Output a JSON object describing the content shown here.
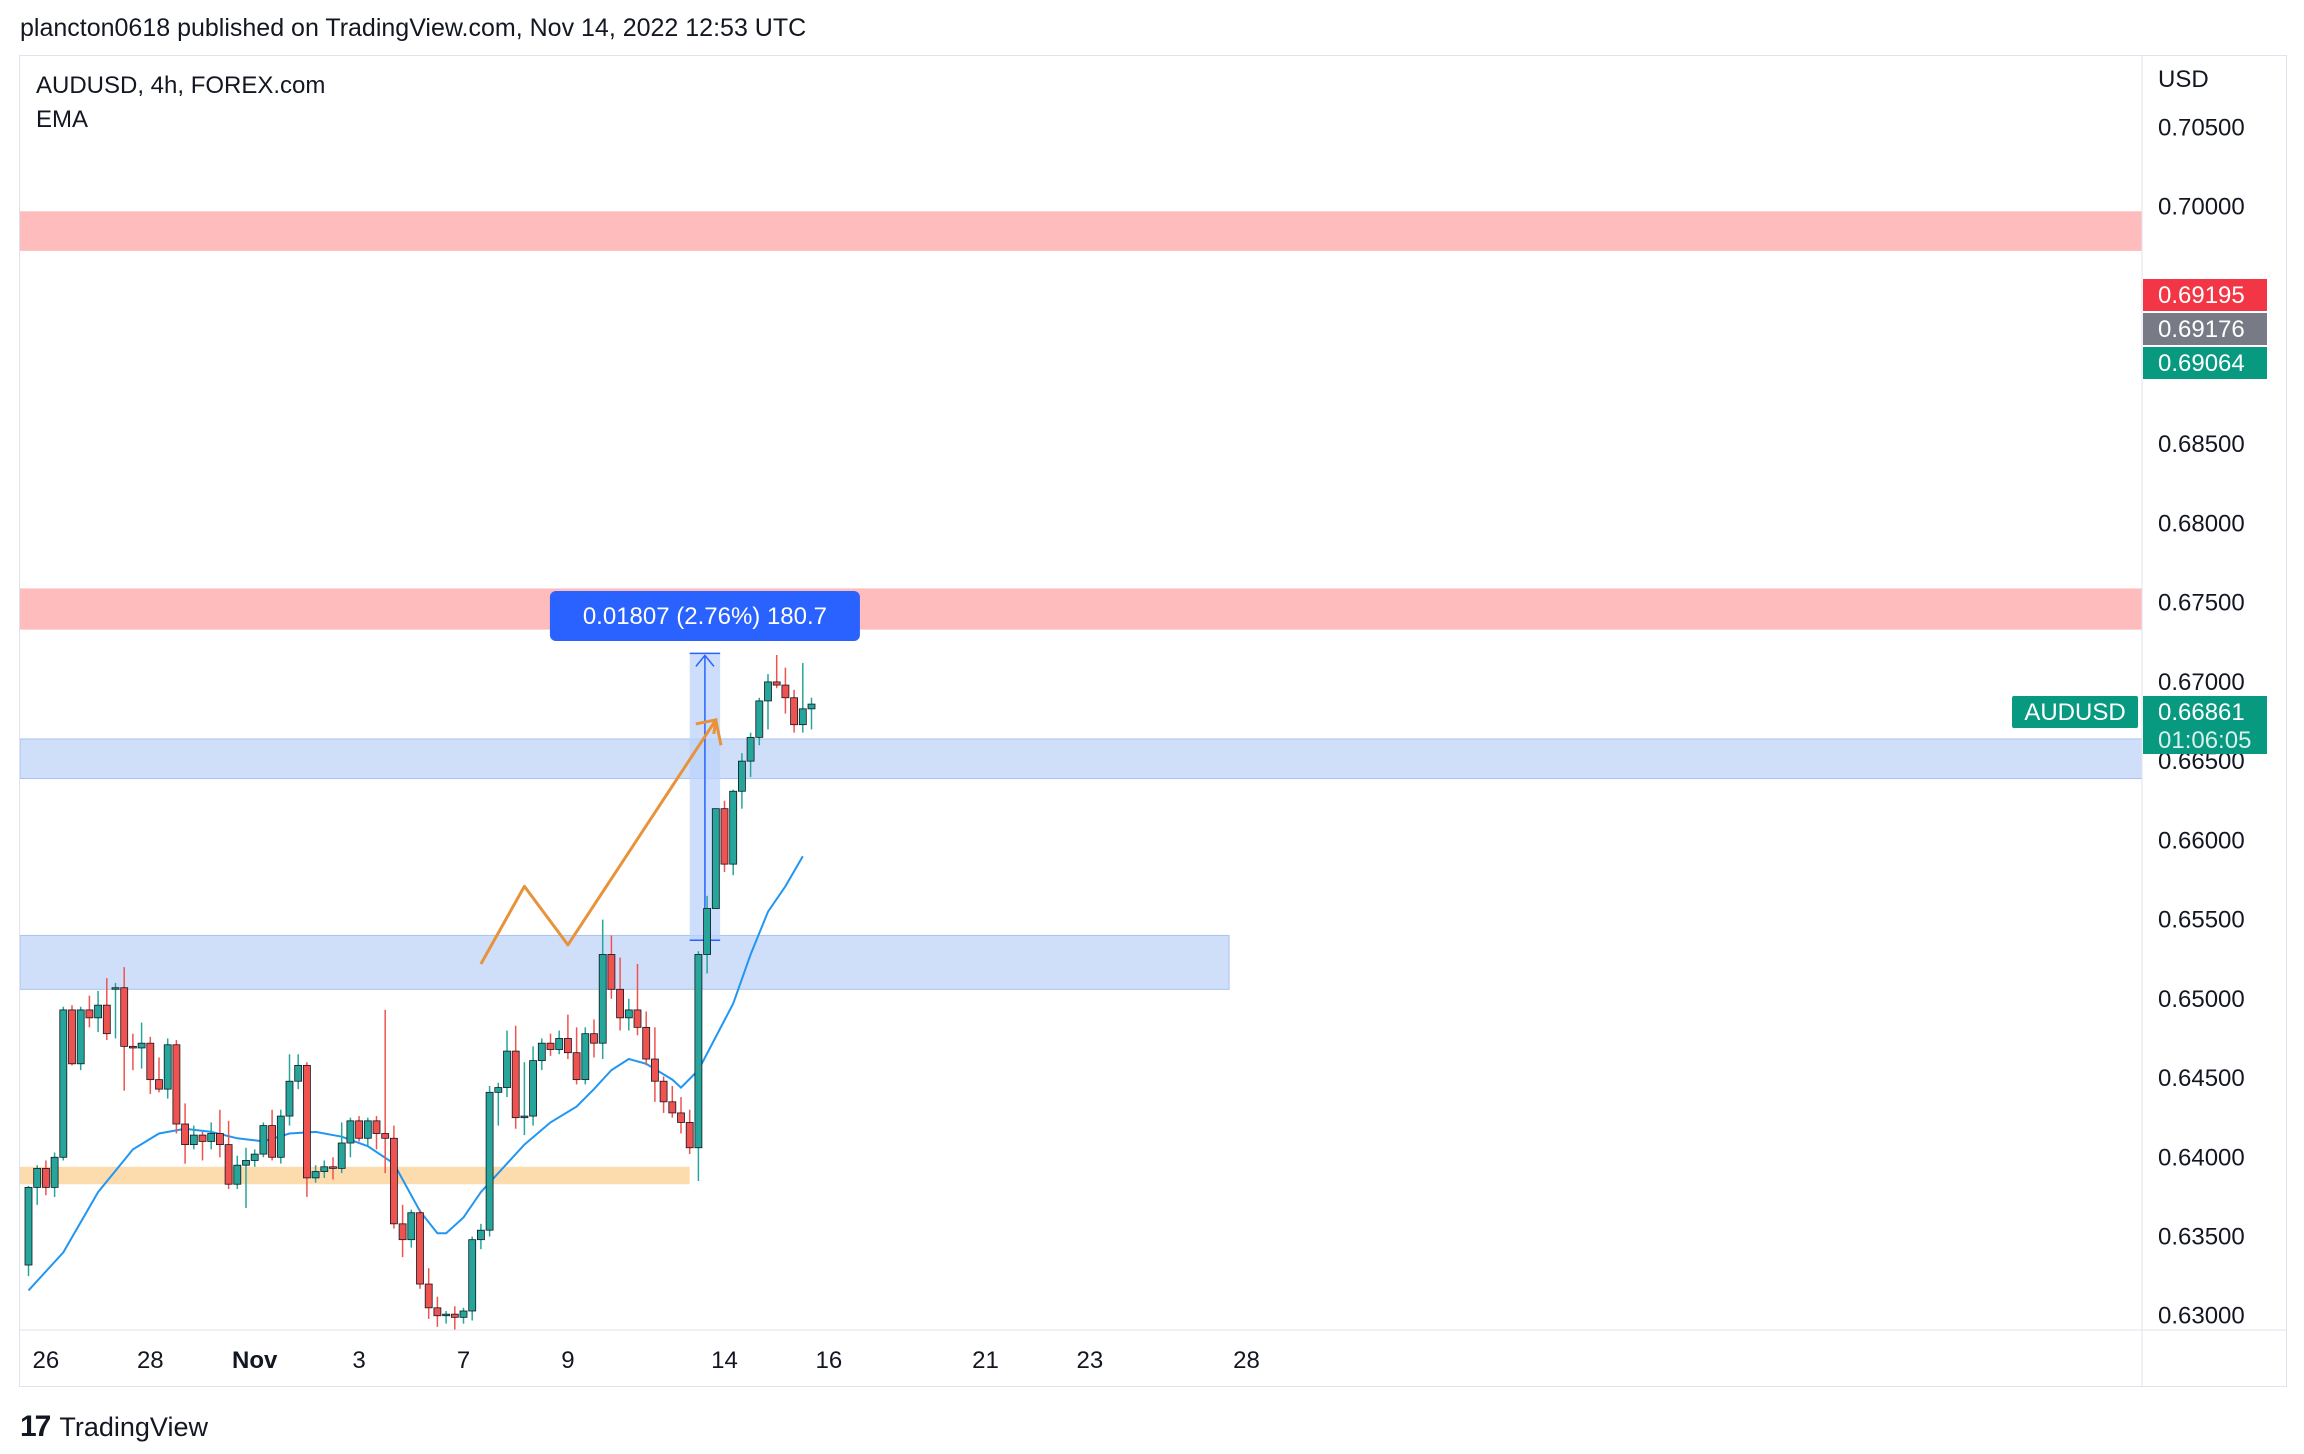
{
  "header": {
    "text": "plancton0618 published on TradingView.com, Nov 14, 2022 12:53 UTC"
  },
  "legend": {
    "symbol": "AUDUSD, 4h, FOREX.com",
    "indicator": "EMA"
  },
  "footer": {
    "brand": "TradingView",
    "logo_icon": "tradingview-logo-icon"
  },
  "measure_label": "0.01807 (2.76%) 180.7",
  "price_badges": {
    "high": "0.69195",
    "mid": "0.69176",
    "low": "0.69064",
    "symbol": "AUDUSD",
    "last": "0.66861",
    "countdown": "01:06:05"
  },
  "colors": {
    "up": "#26a69a",
    "down": "#ef5350",
    "ema": "#2196f3",
    "resistance_zone": "#ffb8b8",
    "support_zone": "#c7d9f9",
    "base_zone": "#fcd9a8",
    "projection": "#e8923a",
    "measure_fill": "#bcd3fb",
    "badge_red": "#f23645",
    "badge_gray": "#787b86",
    "badge_green": "#089981",
    "label_blue": "#2962ff"
  },
  "chart_data": {
    "type": "candlestick",
    "title": "AUDUSD, 4h, FOREX.com",
    "y_axis": {
      "unit": "USD",
      "ticks": [
        "0.70500",
        "0.70000",
        "0.68500",
        "0.68000",
        "0.67500",
        "0.67000",
        "0.66500",
        "0.66000",
        "0.65500",
        "0.65000",
        "0.64500",
        "0.64000",
        "0.63500",
        "0.63000"
      ],
      "ylim": [
        0.6291,
        0.7095
      ]
    },
    "x_axis": {
      "ticks": [
        {
          "label": "26",
          "index": 2
        },
        {
          "label": "28",
          "index": 14
        },
        {
          "label": "Nov",
          "index": 26
        },
        {
          "label": "3",
          "index": 38
        },
        {
          "label": "7",
          "index": 50
        },
        {
          "label": "9",
          "index": 62
        },
        {
          "label": "14",
          "index": 80
        },
        {
          "label": "16",
          "index": 92
        },
        {
          "label": "21",
          "index": 110
        },
        {
          "label": "23",
          "index": 122
        },
        {
          "label": "28",
          "index": 140
        }
      ],
      "bold_labels": [
        "Nov"
      ]
    },
    "candles": [
      [
        0.6332,
        0.6382,
        0.6325,
        0.6381
      ],
      [
        0.6381,
        0.6395,
        0.637,
        0.6393
      ],
      [
        0.6393,
        0.6398,
        0.6376,
        0.6381
      ],
      [
        0.6381,
        0.6403,
        0.6375,
        0.64
      ],
      [
        0.64,
        0.6495,
        0.6398,
        0.6493
      ],
      [
        0.6493,
        0.6496,
        0.6458,
        0.6459
      ],
      [
        0.6459,
        0.6495,
        0.6455,
        0.6493
      ],
      [
        0.6493,
        0.6502,
        0.6482,
        0.6488
      ],
      [
        0.6488,
        0.6505,
        0.6479,
        0.6496
      ],
      [
        0.6496,
        0.6513,
        0.6474,
        0.6478
      ],
      [
        0.6507,
        0.651,
        0.6475,
        0.6507
      ],
      [
        0.6507,
        0.652,
        0.6442,
        0.647
      ],
      [
        0.647,
        0.6478,
        0.6455,
        0.6469
      ],
      [
        0.6469,
        0.6485,
        0.6456,
        0.6472
      ],
      [
        0.6472,
        0.6476,
        0.644,
        0.6449
      ],
      [
        0.6449,
        0.6463,
        0.6441,
        0.6443
      ],
      [
        0.6443,
        0.6475,
        0.6437,
        0.6471
      ],
      [
        0.6471,
        0.6474,
        0.6415,
        0.6421
      ],
      [
        0.6421,
        0.6434,
        0.6396,
        0.6408
      ],
      [
        0.6408,
        0.642,
        0.6405,
        0.6414
      ],
      [
        0.6414,
        0.6416,
        0.6398,
        0.641
      ],
      [
        0.641,
        0.6422,
        0.6405,
        0.6415
      ],
      [
        0.6415,
        0.643,
        0.64,
        0.6408
      ],
      [
        0.6408,
        0.6423,
        0.638,
        0.6383
      ],
      [
        0.6383,
        0.6401,
        0.638,
        0.6395
      ],
      [
        0.6395,
        0.6406,
        0.6368,
        0.6398
      ],
      [
        0.6398,
        0.6405,
        0.6394,
        0.6402
      ],
      [
        0.6402,
        0.6422,
        0.64,
        0.642
      ],
      [
        0.642,
        0.643,
        0.6398,
        0.64
      ],
      [
        0.64,
        0.643,
        0.6396,
        0.6426
      ],
      [
        0.6426,
        0.6465,
        0.642,
        0.6448
      ],
      [
        0.6448,
        0.6465,
        0.6443,
        0.6458
      ],
      [
        0.6458,
        0.646,
        0.6375,
        0.6387
      ],
      [
        0.6387,
        0.6395,
        0.6384,
        0.6391
      ],
      [
        0.6391,
        0.6398,
        0.6387,
        0.6394
      ],
      [
        0.6394,
        0.64,
        0.6386,
        0.6393
      ],
      [
        0.6393,
        0.6422,
        0.639,
        0.6409
      ],
      [
        0.6409,
        0.6425,
        0.64,
        0.6423
      ],
      [
        0.6423,
        0.6426,
        0.641,
        0.6412
      ],
      [
        0.6412,
        0.6425,
        0.6407,
        0.6423
      ],
      [
        0.6423,
        0.6426,
        0.6405,
        0.6415
      ],
      [
        0.6415,
        0.6493,
        0.639,
        0.6412
      ],
      [
        0.6412,
        0.642,
        0.6355,
        0.6358
      ],
      [
        0.6358,
        0.637,
        0.6337,
        0.6348
      ],
      [
        0.6348,
        0.6367,
        0.6343,
        0.6365
      ],
      [
        0.6365,
        0.6367,
        0.6317,
        0.632
      ],
      [
        0.632,
        0.633,
        0.6298,
        0.6305
      ],
      [
        0.6305,
        0.6312,
        0.6293,
        0.63
      ],
      [
        0.63,
        0.6303,
        0.6295,
        0.6301
      ],
      [
        0.6301,
        0.6306,
        0.6291,
        0.6299
      ],
      [
        0.6299,
        0.6305,
        0.6295,
        0.6303
      ],
      [
        0.6303,
        0.635,
        0.6297,
        0.6348
      ],
      [
        0.6348,
        0.6358,
        0.6342,
        0.6354
      ],
      [
        0.6354,
        0.6445,
        0.635,
        0.6441
      ],
      [
        0.6441,
        0.6447,
        0.642,
        0.6444
      ],
      [
        0.6444,
        0.648,
        0.6438,
        0.6467
      ],
      [
        0.6467,
        0.6483,
        0.6418,
        0.6425
      ],
      [
        0.6425,
        0.646,
        0.6414,
        0.6426
      ],
      [
        0.6426,
        0.647,
        0.642,
        0.6461
      ],
      [
        0.6461,
        0.6475,
        0.6455,
        0.6472
      ],
      [
        0.6472,
        0.6478,
        0.6464,
        0.6468
      ],
      [
        0.6468,
        0.648,
        0.6465,
        0.6475
      ],
      [
        0.6475,
        0.649,
        0.6462,
        0.6466
      ],
      [
        0.6466,
        0.6482,
        0.6446,
        0.6449
      ],
      [
        0.6449,
        0.6482,
        0.6446,
        0.6478
      ],
      [
        0.6478,
        0.6487,
        0.6463,
        0.6472
      ],
      [
        0.6472,
        0.655,
        0.6462,
        0.6528
      ],
      [
        0.6528,
        0.654,
        0.65,
        0.6506
      ],
      [
        0.6506,
        0.6526,
        0.648,
        0.6488
      ],
      [
        0.6488,
        0.65,
        0.648,
        0.6493
      ],
      [
        0.6493,
        0.6522,
        0.6477,
        0.6482
      ],
      [
        0.6482,
        0.6492,
        0.6458,
        0.6462
      ],
      [
        0.6462,
        0.6482,
        0.6435,
        0.6448
      ],
      [
        0.6448,
        0.6451,
        0.6428,
        0.6435
      ],
      [
        0.6435,
        0.6445,
        0.6425,
        0.6428
      ],
      [
        0.6428,
        0.6438,
        0.6415,
        0.6422
      ],
      [
        0.6422,
        0.643,
        0.6402,
        0.6406
      ],
      [
        0.6406,
        0.653,
        0.6385,
        0.6528
      ],
      [
        0.6528,
        0.6565,
        0.6516,
        0.6557
      ],
      [
        0.6557,
        0.662,
        0.6557,
        0.662
      ],
      [
        0.662,
        0.6625,
        0.658,
        0.6585
      ],
      [
        0.6585,
        0.6632,
        0.6578,
        0.6631
      ],
      [
        0.6631,
        0.6655,
        0.662,
        0.665
      ],
      [
        0.665,
        0.6668,
        0.664,
        0.6665
      ],
      [
        0.6665,
        0.669,
        0.666,
        0.6688
      ],
      [
        0.6688,
        0.6705,
        0.667,
        0.67
      ],
      [
        0.67,
        0.6717,
        0.6696,
        0.6698
      ],
      [
        0.6698,
        0.6709,
        0.668,
        0.669
      ],
      [
        0.669,
        0.6695,
        0.6668,
        0.6673
      ],
      [
        0.6673,
        0.6712,
        0.6668,
        0.6683
      ],
      [
        0.6683,
        0.669,
        0.667,
        0.6686
      ]
    ],
    "ema": [
      [
        0,
        0.6316
      ],
      [
        4,
        0.634
      ],
      [
        8,
        0.6378
      ],
      [
        12,
        0.6405
      ],
      [
        15,
        0.6415
      ],
      [
        18,
        0.6418
      ],
      [
        21,
        0.6416
      ],
      [
        24,
        0.6412
      ],
      [
        27,
        0.641
      ],
      [
        30,
        0.6415
      ],
      [
        33,
        0.6416
      ],
      [
        36,
        0.6413
      ],
      [
        39,
        0.6407
      ],
      [
        42,
        0.6396
      ],
      [
        45,
        0.6366
      ],
      [
        47,
        0.6352
      ],
      [
        48,
        0.6352
      ],
      [
        50,
        0.6362
      ],
      [
        52,
        0.6378
      ],
      [
        54,
        0.639
      ],
      [
        57,
        0.6408
      ],
      [
        60,
        0.6422
      ],
      [
        63,
        0.6432
      ],
      [
        65,
        0.6443
      ],
      [
        67,
        0.6455
      ],
      [
        69,
        0.6462
      ],
      [
        71,
        0.6459
      ],
      [
        74,
        0.6449
      ],
      [
        75,
        0.6444
      ],
      [
        77,
        0.6455
      ],
      [
        79,
        0.6476
      ],
      [
        81,
        0.6497
      ],
      [
        83,
        0.6528
      ],
      [
        85,
        0.6555
      ],
      [
        87,
        0.6571
      ],
      [
        89,
        0.659
      ]
    ],
    "zones": [
      {
        "kind": "resistance",
        "from": 0.6972,
        "to": 0.6997,
        "start_index": -3,
        "end_index": null
      },
      {
        "kind": "resistance",
        "from": 0.6733,
        "to": 0.6759,
        "start_index": -3,
        "end_index": null
      },
      {
        "kind": "support",
        "from": 0.6639,
        "to": 0.6664,
        "start_index": -3,
        "end_index": null
      },
      {
        "kind": "support",
        "from": 0.6506,
        "to": 0.654,
        "start_index": -3,
        "end_index": 138
      },
      {
        "kind": "base",
        "from": 0.6383,
        "to": 0.6394,
        "start_index": -3,
        "end_index": 76
      }
    ],
    "projection_path": [
      [
        52,
        0.6522
      ],
      [
        57,
        0.6571
      ],
      [
        62,
        0.6534
      ],
      [
        79,
        0.6676
      ],
      [
        79.6,
        0.666
      ]
    ],
    "measurement": {
      "x_from": 76,
      "x_to": 79.5,
      "price_from": 0.6537,
      "price_to": 0.6718
    }
  }
}
